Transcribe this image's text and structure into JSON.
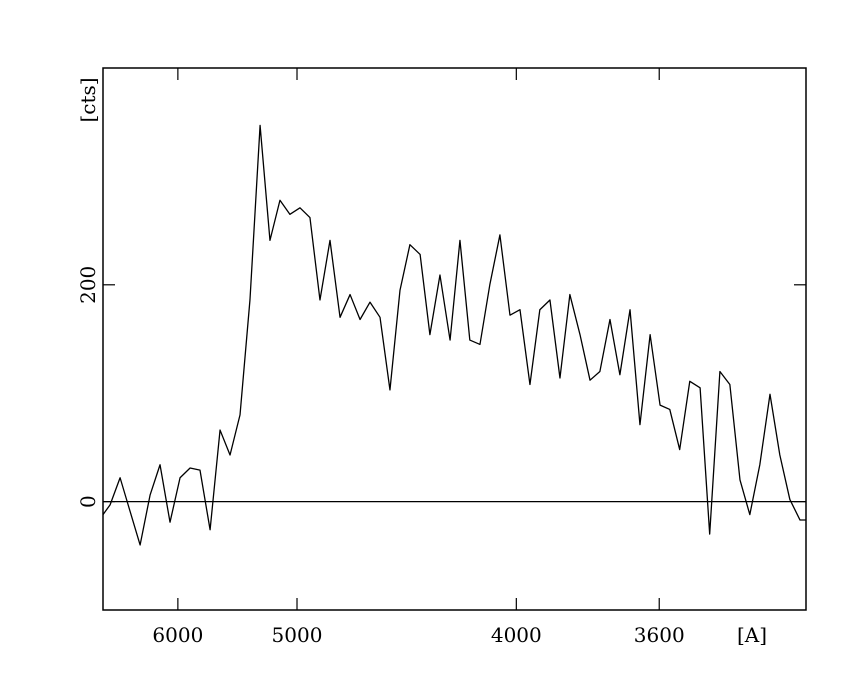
{
  "chart_data": {
    "type": "line",
    "xscale": "inverse_square",
    "x_label": "[A]",
    "y_label": "[cts]",
    "x": [
      7054,
      6930,
      6765,
      6612,
      6468,
      6334,
      6208,
      6089,
      5976,
      5869,
      5769,
      5672,
      5581,
      5494,
      5411,
      5332,
      5255,
      5183,
      5113,
      5046,
      4981,
      4919,
      4859,
      4801,
      4745,
      4691,
      4639,
      4589,
      4540,
      4493,
      4447,
      4403,
      4359,
      4318,
      4277,
      4237,
      4199,
      4162,
      4125,
      4090,
      4055,
      4021,
      3988,
      3956,
      3925,
      3894,
      3864,
      3835,
      3806,
      3778,
      3751,
      3724,
      3698,
      3672,
      3647,
      3622,
      3598,
      3575,
      3552,
      3529,
      3506,
      3485,
      3463,
      3442,
      3421,
      3401,
      3381,
      3361,
      3342,
      3323,
      3304,
      3293
    ],
    "series": [
      {
        "color": "#000000",
        "values": [
          -12,
          -3,
          22,
          -9,
          -40,
          6,
          34,
          -19,
          22,
          31,
          29,
          -26,
          66,
          43,
          80,
          186,
          347,
          241,
          278,
          265,
          271,
          262,
          186,
          241,
          170,
          191,
          168,
          184,
          170,
          103,
          195,
          237,
          228,
          154,
          209,
          149,
          241,
          149,
          145,
          200,
          246,
          172,
          177,
          108,
          177,
          186,
          114,
          191,
          154,
          112,
          120,
          168,
          117,
          177,
          71,
          154,
          89,
          85,
          48,
          111,
          105,
          -30,
          120,
          108,
          20,
          -12,
          34,
          99,
          43,
          2,
          -17,
          -17
        ]
      }
    ],
    "xlim": [
      7054,
      3293
    ],
    "xticks": [
      6000,
      5000,
      4000,
      3600
    ],
    "ylim": [
      -100,
      400
    ],
    "yticks": [
      0,
      200
    ],
    "zero_line": true
  }
}
